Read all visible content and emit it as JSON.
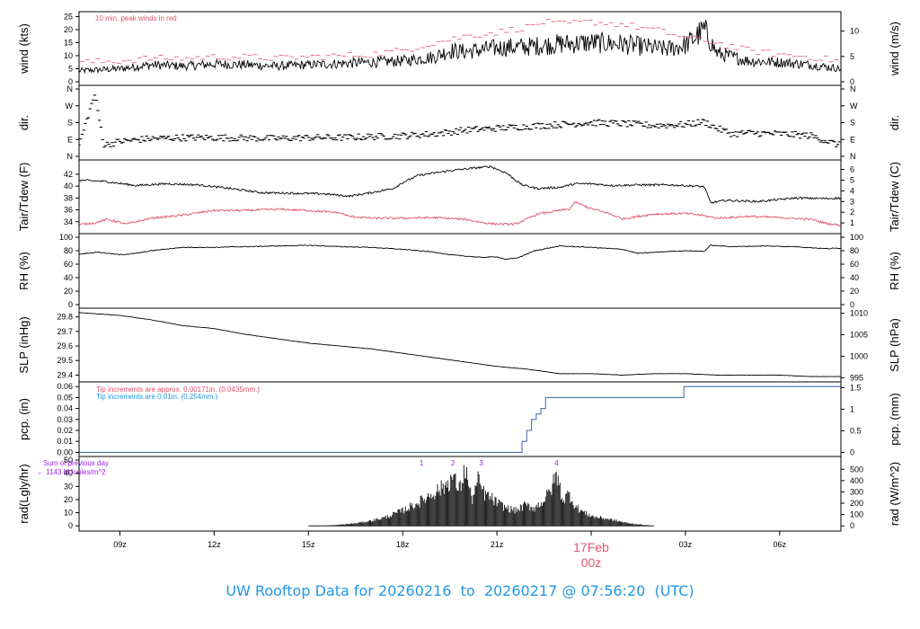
{
  "colors": {
    "axis": "#000000",
    "peak": "#df536b",
    "dew": "#df536b",
    "tip_small": "#df536b",
    "tip_large": "#2297e6",
    "rad_note": "#a020f0",
    "date_label": "#df536b",
    "footer": "#2297e6"
  },
  "footer": {
    "prefix": "UW Rooftop Data for",
    "start_date": "20260216",
    "connector": "to",
    "end_date": "20260217",
    "at": "@",
    "time": "07:56:20",
    "tz": "(UTC)"
  },
  "x_axis": {
    "unit": "hours since 00z 20260216",
    "range": [
      7.7,
      31.95
    ],
    "ticks": [
      {
        "label": "09z",
        "value": 9
      },
      {
        "label": "12z",
        "value": 12
      },
      {
        "label": "15z",
        "value": 15
      },
      {
        "label": "18z",
        "value": 18
      },
      {
        "label": "21z",
        "value": 21
      },
      {
        "label": "03z",
        "value": 27
      },
      {
        "label": "06z",
        "value": 30
      }
    ],
    "day_label": {
      "date": "17Feb",
      "time": "00z",
      "value": 24
    }
  },
  "chart_data": [
    {
      "id": "wind",
      "type": "line",
      "ylabel": "wind (kts)",
      "ylabel_right": "wind (m/s)",
      "ylim": [
        0,
        25.5
      ],
      "yticks": [
        "0",
        "5",
        "10",
        "15",
        "20",
        "25"
      ],
      "right_ticks": [
        {
          "label": "0",
          "value": 0
        },
        {
          "label": "5",
          "value": 9.72
        },
        {
          "label": "10",
          "value": 19.44
        }
      ],
      "annotation": "10 min. peak winds in red",
      "series": [
        {
          "kind": "wind_speed",
          "x": [
            7.7,
            9,
            10,
            11,
            12,
            13,
            14,
            15,
            16,
            17,
            18,
            19,
            19.5,
            20,
            21,
            22,
            23,
            24,
            25,
            26,
            26.4,
            27,
            27.6,
            28,
            29,
            30,
            31,
            31.95
          ],
          "values": [
            4.2,
            5,
            6.5,
            6,
            6.8,
            6.5,
            6,
            6.5,
            7,
            7.5,
            8,
            9.5,
            12,
            11.5,
            13,
            13.5,
            14.5,
            15,
            14.5,
            13,
            12.5,
            14,
            20,
            11,
            8,
            7.5,
            6.5,
            5
          ]
        },
        {
          "kind": "peak_10min",
          "x": [
            8,
            9,
            10,
            11,
            12,
            13,
            14,
            15,
            16,
            17,
            18,
            19,
            20,
            21,
            22,
            22.5,
            23,
            24,
            25,
            26,
            27,
            28,
            29,
            30,
            31,
            31.9
          ],
          "values": [
            7.5,
            8,
            9,
            9,
            9.5,
            9.5,
            9,
            9.5,
            10,
            10.5,
            12,
            15,
            17.5,
            19,
            21,
            23,
            22,
            23,
            22,
            20,
            17,
            15,
            12,
            10.5,
            9.5,
            8
          ]
        }
      ]
    },
    {
      "id": "dir",
      "type": "scatter",
      "ylabel": "dir.",
      "ylabel_right": "dir.",
      "ylim": [
        0,
        360
      ],
      "yticks": [
        "N",
        "E",
        "S",
        "W",
        "N"
      ],
      "series": [
        {
          "kind": "direction",
          "x": [
            7.7,
            8.2,
            8.5,
            9,
            10,
            11,
            12,
            13,
            14,
            15,
            16,
            17,
            18,
            19,
            20,
            21,
            22,
            23,
            24,
            25,
            26,
            27,
            27.6,
            28,
            28.5,
            29,
            30,
            31,
            31.9
          ],
          "values": [
            60,
            330,
            60,
            80,
            95,
            100,
            100,
            98,
            95,
            100,
            100,
            105,
            110,
            120,
            140,
            150,
            160,
            170,
            180,
            175,
            165,
            170,
            185,
            150,
            120,
            125,
            120,
            110,
            60
          ]
        }
      ]
    },
    {
      "id": "temp",
      "type": "line",
      "ylabel": "Tair/Tdew (F)",
      "ylabel_right": "Tair/Tdew (C)",
      "ylim": [
        32.6,
        43.8
      ],
      "yticks": [
        "34",
        "36",
        "38",
        "40",
        "42"
      ],
      "right_ticks": [
        {
          "label": "1",
          "value": 33.8
        },
        {
          "label": "2",
          "value": 35.6
        },
        {
          "label": "3",
          "value": 37.4
        },
        {
          "label": "4",
          "value": 39.2
        },
        {
          "label": "5",
          "value": 41.0
        },
        {
          "label": "6",
          "value": 42.8
        }
      ],
      "series": [
        {
          "kind": "air_temp",
          "x": [
            7.7,
            8.5,
            9.5,
            10.5,
            11.5,
            12.5,
            13.5,
            14.5,
            15.5,
            16.3,
            17,
            17.7,
            18,
            18.5,
            19.5,
            20.2,
            20.8,
            21.3,
            21.8,
            22.3,
            23,
            23.5,
            24,
            24.7,
            25.5,
            26.5,
            27.3,
            27.6,
            27.8,
            28.3,
            29.3,
            30.5,
            31.5,
            31.95
          ],
          "values": [
            41,
            40.8,
            40.1,
            40.4,
            40.2,
            39.6,
            38.9,
            38.8,
            38.7,
            38.3,
            38.9,
            39.6,
            40.6,
            41.8,
            42.6,
            43,
            43.3,
            42.2,
            40.2,
            39.6,
            39.8,
            40.4,
            40.4,
            40.1,
            40.2,
            40.2,
            40,
            39.9,
            37.2,
            37.6,
            37.4,
            38,
            37.9,
            38
          ]
        },
        {
          "kind": "dew_point",
          "x": [
            7.7,
            8.2,
            8.6,
            9.2,
            10,
            11,
            12,
            13,
            14,
            15,
            16,
            16.3,
            17,
            18,
            19,
            20,
            20.6,
            21,
            21.6,
            22.3,
            23,
            23.3,
            23.5,
            24,
            24.5,
            25,
            26,
            27,
            27.5,
            28,
            29,
            30,
            31,
            31.5,
            31.95
          ],
          "values": [
            33.5,
            33.8,
            34.4,
            33.6,
            34.6,
            35.1,
            35.9,
            35.9,
            36.1,
            35.9,
            35.5,
            34.9,
            34.6,
            34.6,
            34.7,
            34.4,
            33.8,
            33.6,
            33.6,
            35.3,
            35.9,
            36.1,
            37.3,
            36.2,
            35.5,
            34.5,
            35.3,
            35.4,
            35.1,
            34.6,
            34.9,
            34.7,
            34.4,
            33.7,
            33.4
          ]
        }
      ]
    },
    {
      "id": "rh",
      "type": "line",
      "ylabel": "RH (%)",
      "ylabel_right": "RH (%)",
      "ylim": [
        0,
        100
      ],
      "yticks": [
        "0",
        "20",
        "40",
        "60",
        "80",
        "100"
      ],
      "right_ticks": [
        {
          "label": "0",
          "value": 0
        },
        {
          "label": "20",
          "value": 20
        },
        {
          "label": "40",
          "value": 40
        },
        {
          "label": "60",
          "value": 60
        },
        {
          "label": "80",
          "value": 80
        },
        {
          "label": "100",
          "value": 100
        }
      ],
      "series": [
        {
          "kind": "rh",
          "x": [
            7.7,
            8.3,
            9,
            9.5,
            10,
            11,
            12,
            13,
            14,
            15,
            16,
            17,
            18,
            19,
            19.5,
            20.5,
            21,
            21.3,
            21.7,
            22.2,
            23,
            23.5,
            24,
            25,
            25.5,
            26.5,
            27,
            27.6,
            27.8,
            28.5,
            29.5,
            30.5,
            31.5,
            31.95
          ],
          "values": [
            75,
            78,
            74,
            76,
            80,
            85,
            85,
            86,
            87,
            88,
            86,
            85,
            82,
            78,
            74,
            70,
            71,
            67,
            70,
            80,
            87,
            86,
            85,
            82,
            76,
            79,
            80,
            79,
            88,
            86,
            87,
            86,
            83,
            84
          ]
        }
      ]
    },
    {
      "id": "slp",
      "type": "line",
      "ylabel": "SLP (inHg)",
      "ylabel_right": "SLP (hPa)",
      "ylim": [
        29.378,
        29.835
      ],
      "yticks": [
        "29.4",
        "29.5",
        "29.6",
        "29.7",
        "29.8"
      ],
      "right_ticks": [
        {
          "label": "995",
          "value": 29.382
        },
        {
          "label": "1000",
          "value": 29.53
        },
        {
          "label": "1005",
          "value": 29.678
        },
        {
          "label": "1010",
          "value": 29.825
        }
      ],
      "series": [
        {
          "kind": "slp",
          "x": [
            7.7,
            9,
            10,
            11,
            12,
            13,
            14,
            15,
            16,
            17,
            18,
            19,
            20,
            21,
            22,
            23,
            24,
            25,
            26,
            27,
            28,
            29,
            30,
            31,
            31.95
          ],
          "values": [
            29.83,
            29.81,
            29.78,
            29.74,
            29.72,
            29.68,
            29.65,
            29.62,
            29.6,
            29.58,
            29.55,
            29.52,
            29.49,
            29.46,
            29.44,
            29.41,
            29.41,
            29.4,
            29.41,
            29.41,
            29.4,
            29.4,
            29.4,
            29.39,
            29.39
          ]
        }
      ]
    },
    {
      "id": "pcp",
      "type": "line",
      "ylabel": "pcp. (in)",
      "ylabel_right": "pcp. (mm)",
      "ylim": [
        -0.0005,
        0.061
      ],
      "yticks": [
        "0.00",
        "0.01",
        "0.02",
        "0.03",
        "0.04",
        "0.05",
        "0.06"
      ],
      "right_ticks": [
        {
          "label": "0",
          "value": 0
        },
        {
          "label": "0.5",
          "value": 0.01969
        },
        {
          "label": "1",
          "value": 0.03937
        },
        {
          "label": "1.5",
          "value": 0.05906
        }
      ],
      "notes": [
        {
          "text": "Tip increments are approx. 0.00171in. (0.0435mm.)",
          "color": "#df536b"
        },
        {
          "text": "Tip increments are 0.01in. (0.254mm.)",
          "color": "#2297e6"
        }
      ],
      "series": [
        {
          "kind": "precip_step",
          "x": [
            7.7,
            21.8,
            21.8,
            21.95,
            21.95,
            22.1,
            22.1,
            22.25,
            22.25,
            22.4,
            22.4,
            22.55,
            22.55,
            22.7,
            22.7,
            26.95,
            26.95,
            31.95
          ],
          "values": [
            0,
            0,
            0.01,
            0.01,
            0.02,
            0.02,
            0.03,
            0.03,
            0.035,
            0.035,
            0.04,
            0.04,
            0.05,
            0.05,
            0.05,
            0.05,
            0.06,
            0.06
          ]
        }
      ]
    },
    {
      "id": "rad",
      "type": "area",
      "ylabel": "rad(Lgly/hr)",
      "ylabel_right": "rad (W/m^2)",
      "ylim": [
        -1.2,
        50
      ],
      "yticks": [
        "0",
        "10",
        "20",
        "30",
        "40",
        "50"
      ],
      "right_ticks": [
        {
          "label": "0",
          "value": 0
        },
        {
          "label": "100",
          "value": 8.6
        },
        {
          "label": "200",
          "value": 17.2
        },
        {
          "label": "300",
          "value": 25.8
        },
        {
          "label": "400",
          "value": 34.4
        },
        {
          "label": "500",
          "value": 43
        }
      ],
      "sum_label": "Sum of previous day",
      "sum_value": "← 1143 MJoules/m^2",
      "markers": [
        {
          "label": "1",
          "x": 18.6
        },
        {
          "label": "2",
          "x": 19.6
        },
        {
          "label": "3",
          "x": 20.5
        },
        {
          "label": "4",
          "x": 22.9
        }
      ],
      "series": [
        {
          "kind": "radiation",
          "x": [
            15,
            15.8,
            16.5,
            17,
            17.5,
            18,
            18.5,
            19,
            19.3,
            19.6,
            19.8,
            20,
            20.2,
            20.4,
            20.6,
            20.8,
            21,
            21.3,
            21.6,
            21.9,
            22.2,
            22.5,
            22.7,
            22.9,
            23.1,
            23.3,
            23.5,
            23.8,
            24.1,
            24.4,
            24.8,
            25.2,
            25.6,
            26
          ],
          "values": [
            0,
            0.5,
            2,
            4,
            7,
            12,
            18,
            26,
            30,
            38,
            28,
            45,
            20,
            35,
            25,
            22,
            18,
            14,
            12,
            16,
            14,
            20,
            27,
            40,
            20,
            25,
            15,
            10,
            7,
            6,
            4,
            2,
            1,
            0
          ]
        }
      ]
    }
  ]
}
